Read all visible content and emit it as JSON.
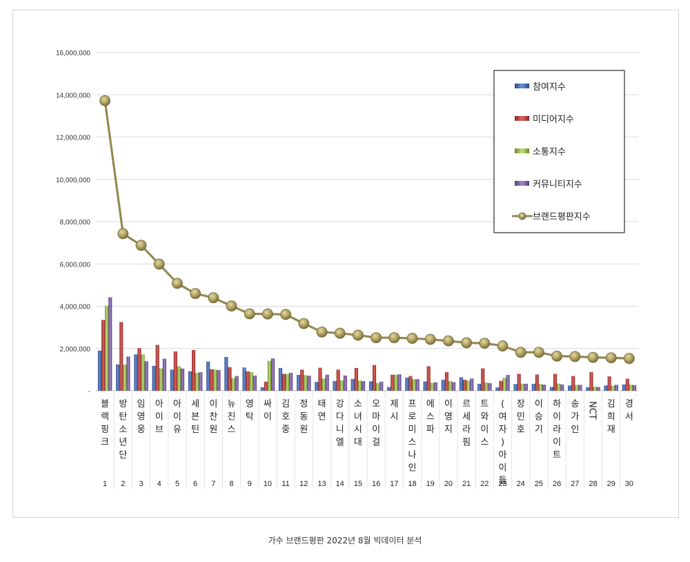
{
  "caption": "가수 브랜드평판  2022년 8월 빅데이터 분석",
  "chart_data": {
    "type": "bar",
    "ylim": [
      0,
      16000000
    ],
    "yticks": [
      {
        "value": 0,
        "label": "-"
      },
      {
        "value": 2000000,
        "label": "2,000,000"
      },
      {
        "value": 4000000,
        "label": "4,000,000"
      },
      {
        "value": 6000000,
        "label": "6,000,000"
      },
      {
        "value": 8000000,
        "label": "8,000,000"
      },
      {
        "value": 10000000,
        "label": "10,000,000"
      },
      {
        "value": 12000000,
        "label": "12,000,000"
      },
      {
        "value": 14000000,
        "label": "14,000,000"
      },
      {
        "value": 16000000,
        "label": "16,000,000"
      }
    ],
    "grid": true,
    "legend_position": "top-right",
    "ranks": [
      "1",
      "2",
      "3",
      "4",
      "5",
      "6",
      "7",
      "8",
      "9",
      "10",
      "11",
      "12",
      "13",
      "14",
      "15",
      "16",
      "17",
      "18",
      "19",
      "20",
      "21",
      "22",
      "23",
      "24",
      "25",
      "26",
      "27",
      "28",
      "29",
      "30"
    ],
    "categories": [
      "블랙핑크",
      "방탄소년단",
      "임영웅",
      "아이브",
      "아이유",
      "세븐틴",
      "이찬원",
      "뉴진스",
      "영탁",
      "싸이",
      "김호중",
      "정동원",
      "태연",
      "강다니엘",
      "소녀시대",
      "오마이걸",
      "제시",
      "프로미스나인",
      "에스파",
      "이영지",
      "르세라핌",
      "트와이스",
      "(여자)아이들",
      "장민호",
      "이승기",
      "하이라이트",
      "송가인",
      "NCT",
      "김희재",
      "경서"
    ],
    "series": [
      {
        "name": "참여지수",
        "kind": "bar",
        "color": "#4a70b5",
        "values": [
          1900000,
          1250000,
          1720000,
          1180000,
          1000000,
          920000,
          1380000,
          1600000,
          1100000,
          170000,
          1080000,
          750000,
          420000,
          460000,
          560000,
          450000,
          180000,
          620000,
          440000,
          520000,
          640000,
          330000,
          160000,
          320000,
          330000,
          180000,
          250000,
          170000,
          250000,
          300000
        ]
      },
      {
        "name": "미디어지수",
        "kind": "bar",
        "color": "#c0504d",
        "values": [
          3350000,
          3250000,
          2020000,
          2170000,
          1860000,
          1930000,
          1020000,
          1120000,
          920000,
          430000,
          800000,
          1000000,
          1090000,
          1000000,
          1080000,
          1220000,
          760000,
          700000,
          1160000,
          880000,
          520000,
          1060000,
          470000,
          800000,
          770000,
          800000,
          700000,
          880000,
          680000,
          570000
        ]
      },
      {
        "name": "소통지수",
        "kind": "bar",
        "color": "#9bbb59",
        "values": [
          4020000,
          1240000,
          1720000,
          1060000,
          1160000,
          850000,
          1000000,
          600000,
          880000,
          1420000,
          800000,
          740000,
          580000,
          500000,
          480000,
          370000,
          760000,
          550000,
          380000,
          460000,
          480000,
          390000,
          620000,
          330000,
          320000,
          340000,
          280000,
          190000,
          240000,
          290000
        ]
      },
      {
        "name": "커뮤니티지수",
        "kind": "bar",
        "color": "#8064a2",
        "values": [
          4420000,
          1620000,
          1400000,
          1520000,
          1050000,
          880000,
          980000,
          700000,
          720000,
          1530000,
          850000,
          710000,
          760000,
          720000,
          460000,
          430000,
          780000,
          550000,
          400000,
          410000,
          580000,
          360000,
          750000,
          330000,
          290000,
          300000,
          280000,
          180000,
          280000,
          270000
        ]
      },
      {
        "name": "브랜드평판지수",
        "kind": "line",
        "color": "#938953",
        "values": [
          13720000,
          7430000,
          6880000,
          5990000,
          5080000,
          4600000,
          4400000,
          4010000,
          3640000,
          3630000,
          3610000,
          3180000,
          2780000,
          2720000,
          2630000,
          2510000,
          2510000,
          2480000,
          2430000,
          2360000,
          2270000,
          2250000,
          2120000,
          1820000,
          1820000,
          1640000,
          1620000,
          1580000,
          1560000,
          1530000
        ]
      }
    ]
  }
}
